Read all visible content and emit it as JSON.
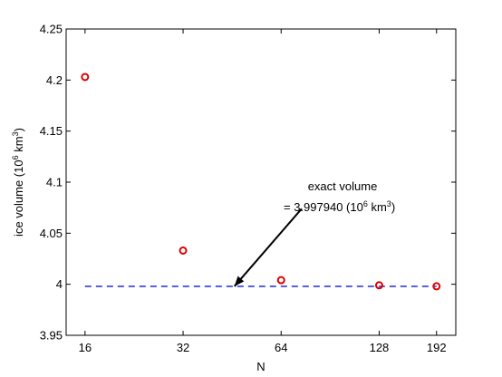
{
  "chart_data": {
    "type": "scatter",
    "xscale": "log",
    "xlabel": "N",
    "ylabel": {
      "pre": "ice volume (10",
      "exp1": "6",
      "mid": " km",
      "exp2": "3",
      "post": ")"
    },
    "xlim": [
      14,
      220
    ],
    "ylim": [
      3.95,
      4.25
    ],
    "xticks": [
      16,
      32,
      64,
      128,
      192
    ],
    "yticks": [
      3.95,
      4,
      4.05,
      4.1,
      4.15,
      4.2,
      4.25
    ],
    "ytick_labels": [
      "3.95",
      "4",
      "4.05",
      "4.1",
      "4.15",
      "4.2",
      "4.25"
    ],
    "grid": false,
    "points": [
      {
        "x": 16,
        "y": 4.203
      },
      {
        "x": 32,
        "y": 4.033
      },
      {
        "x": 64,
        "y": 4.004
      },
      {
        "x": 128,
        "y": 3.999
      },
      {
        "x": 192,
        "y": 3.998
      }
    ],
    "marker_color": "#dd0000",
    "reference_line": {
      "y": 3.99794,
      "x_from": 16,
      "x_to": 192,
      "color": "#1f2fd6",
      "style": "dashed"
    },
    "annotation": {
      "line1": "exact volume",
      "line2_pre": "= 3.997940 (10",
      "line2_exp1": "6",
      "line2_mid": " km",
      "line2_exp2": "3",
      "line2_post": ")",
      "arrow_from": {
        "x": 74,
        "y": 4.074
      },
      "arrow_to": {
        "x": 46,
        "y": 3.998
      }
    }
  }
}
